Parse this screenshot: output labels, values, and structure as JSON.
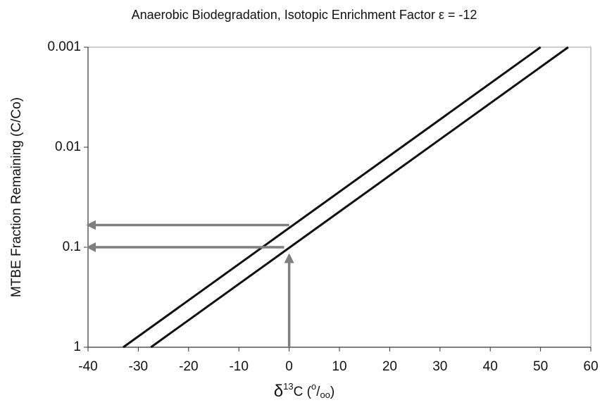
{
  "chart_data": {
    "type": "line",
    "title": "Anaerobic Biodegradation,  Isotopic Enrichment Factor ε = -12",
    "y_label": "MTBE Fraction Remaining (C/Co)",
    "x_label_parts": [
      {
        "text": "δ",
        "style": "big"
      },
      {
        "text": "13",
        "style": "sup"
      },
      {
        "text": "C ("
      },
      {
        "text": "o",
        "style": "sup"
      },
      {
        "text": "/"
      },
      {
        "text": "oo",
        "style": "sub"
      },
      {
        "text": ")"
      }
    ],
    "xlim": [
      -40,
      60
    ],
    "xticks": [
      -40,
      -30,
      -20,
      -10,
      0,
      10,
      20,
      30,
      40,
      50,
      60
    ],
    "ylim": [
      1,
      0.001
    ],
    "yticks": [
      0.001,
      0.01,
      0.1,
      1
    ],
    "yscale": "log",
    "series": [
      {
        "color": "#111111",
        "x": [
          -33,
          50
        ],
        "values": [
          1,
          0.001
        ]
      },
      {
        "color": "#111111",
        "x": [
          -27.5,
          55.5
        ],
        "values": [
          1,
          0.001
        ]
      }
    ],
    "arrows": [
      {
        "color": "#7f7f7f",
        "x": [
          0,
          -40
        ],
        "values": [
          0.06,
          0.06
        ]
      },
      {
        "color": "#7f7f7f",
        "x": [
          -1,
          -40
        ],
        "values": [
          0.1,
          0.1
        ]
      },
      {
        "color": "#7f7f7f",
        "x": [
          0,
          0
        ],
        "values": [
          1,
          0.12
        ]
      }
    ]
  }
}
